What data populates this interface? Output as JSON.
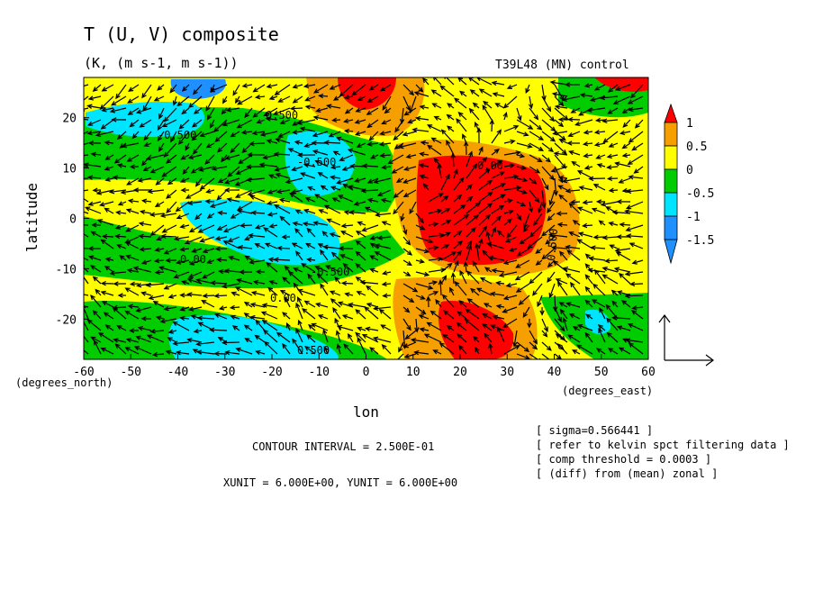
{
  "chart_data": {
    "type": "heatmap",
    "title": "T (U, V) composite",
    "subtitle": "(K, (m s-1, m s-1))",
    "experiment_label": "T39L48 (MN) control",
    "xlabel": "lon",
    "ylabel": "latitude",
    "x_unit_label": "(degrees_east)",
    "y_unit_label": "(degrees_north)",
    "xlim": [
      -60,
      60
    ],
    "ylim": [
      -28,
      28
    ],
    "x_ticks": [
      "-60",
      "-50",
      "-40",
      "-30",
      "-20",
      "-10",
      "0",
      "10",
      "20",
      "30",
      "40",
      "50",
      "60"
    ],
    "y_ticks": [
      "20",
      "10",
      "0",
      "-10",
      "-20"
    ],
    "colorbar": {
      "labels": [
        "1",
        "0.5",
        "0",
        "-0.5",
        "-1",
        "-1.5"
      ],
      "colors": [
        "#ff0000",
        "#f5a000",
        "#ffff00",
        "#00cc00",
        "#00e5ff",
        "#1e90ff"
      ]
    },
    "contour_labels": [
      "-0.500",
      "-0.500",
      "-0.500",
      "0.00",
      "0.00",
      "0.00",
      "0.500",
      "0.500",
      "0.500"
    ],
    "grid": false,
    "vector_reference": "reference vector at right of plot"
  },
  "footer": {
    "contour_interval": "CONTOUR INTERVAL = 2.500E-01",
    "units": "XUNIT = 6.000E+00, YUNIT = 6.000E+00"
  },
  "notes": [
    "[ sigma=0.566441 ]",
    "[ refer to kelvin spct filtering data ]",
    "[ comp threshold = 0.0003 ]",
    "[ (diff) from (mean) zonal ]"
  ],
  "colors": {
    "red": "#ff0000",
    "orange": "#f5a000",
    "yellow": "#ffff00",
    "green": "#00cc00",
    "cyan": "#00e5ff",
    "blue": "#1e90ff"
  }
}
